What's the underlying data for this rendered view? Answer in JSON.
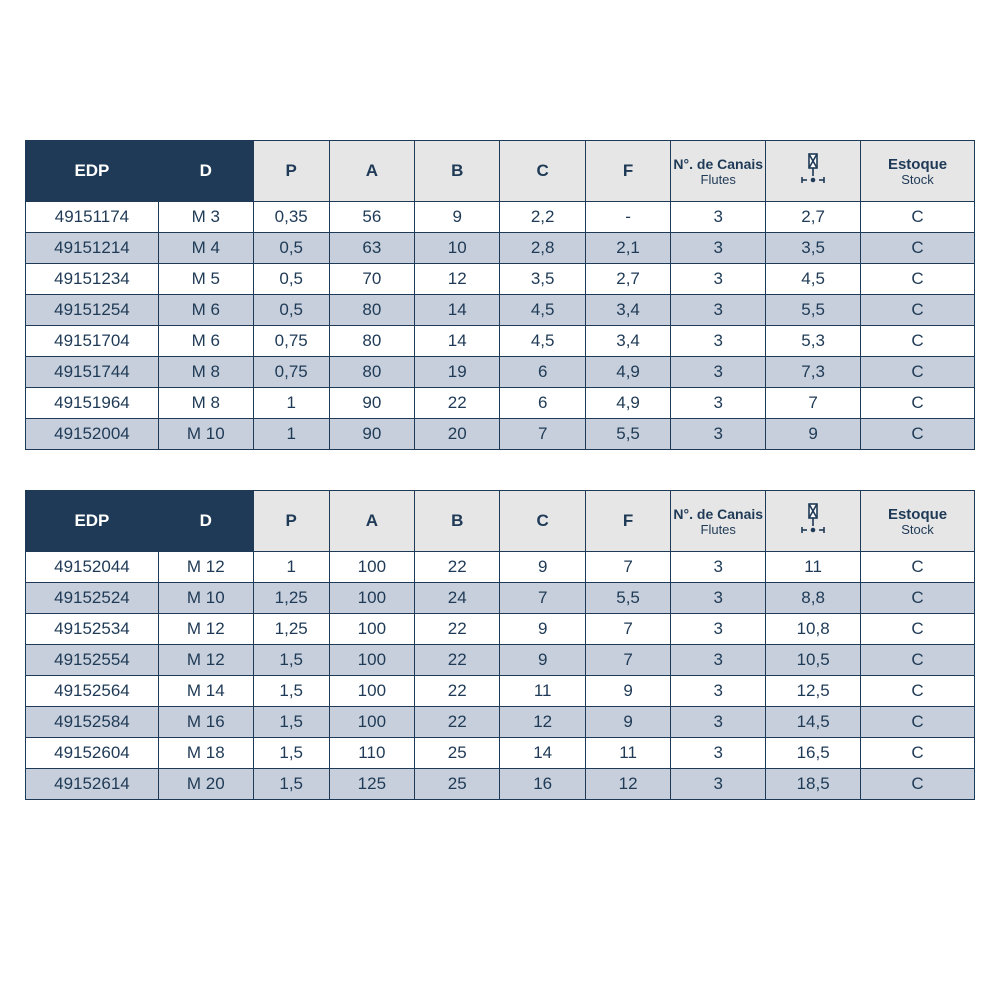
{
  "colors": {
    "header_dark_bg": "#1f3a56",
    "header_dark_fg": "#ffffff",
    "header_light_bg": "#e6e6e6",
    "row_alt_bg": "#c6cfdb",
    "row_plain_bg": "#ffffff",
    "border": "#1f3a56",
    "text": "#1f3a56"
  },
  "headers": {
    "edp": "EDP",
    "d": "D",
    "p": "P",
    "a": "A",
    "b": "B",
    "c": "C",
    "f": "F",
    "flutes_main": "N°. de Canais",
    "flutes_sub": "Flutes",
    "shank": "⌀",
    "stock_main": "Estoque",
    "stock_sub": "Stock"
  },
  "column_widths_pct": {
    "edp": 14,
    "d": 10,
    "p": 8,
    "a": 9,
    "b": 9,
    "c": 9,
    "f": 9,
    "flutes": 10,
    "shank": 10,
    "stock": 12
  },
  "tables": [
    {
      "rows": [
        [
          "49151174",
          "M 3",
          "0,35",
          "56",
          "9",
          "2,2",
          "-",
          "3",
          "2,7",
          "C"
        ],
        [
          "49151214",
          "M 4",
          "0,5",
          "63",
          "10",
          "2,8",
          "2,1",
          "3",
          "3,5",
          "C"
        ],
        [
          "49151234",
          "M 5",
          "0,5",
          "70",
          "12",
          "3,5",
          "2,7",
          "3",
          "4,5",
          "C"
        ],
        [
          "49151254",
          "M 6",
          "0,5",
          "80",
          "14",
          "4,5",
          "3,4",
          "3",
          "5,5",
          "C"
        ],
        [
          "49151704",
          "M 6",
          "0,75",
          "80",
          "14",
          "4,5",
          "3,4",
          "3",
          "5,3",
          "C"
        ],
        [
          "49151744",
          "M 8",
          "0,75",
          "80",
          "19",
          "6",
          "4,9",
          "3",
          "7,3",
          "C"
        ],
        [
          "49151964",
          "M 8",
          "1",
          "90",
          "22",
          "6",
          "4,9",
          "3",
          "7",
          "C"
        ],
        [
          "49152004",
          "M 10",
          "1",
          "90",
          "20",
          "7",
          "5,5",
          "3",
          "9",
          "C"
        ]
      ]
    },
    {
      "rows": [
        [
          "49152044",
          "M 12",
          "1",
          "100",
          "22",
          "9",
          "7",
          "3",
          "11",
          "C"
        ],
        [
          "49152524",
          "M 10",
          "1,25",
          "100",
          "24",
          "7",
          "5,5",
          "3",
          "8,8",
          "C"
        ],
        [
          "49152534",
          "M 12",
          "1,25",
          "100",
          "22",
          "9",
          "7",
          "3",
          "10,8",
          "C"
        ],
        [
          "49152554",
          "M 12",
          "1,5",
          "100",
          "22",
          "9",
          "7",
          "3",
          "10,5",
          "C"
        ],
        [
          "49152564",
          "M 14",
          "1,5",
          "100",
          "22",
          "11",
          "9",
          "3",
          "12,5",
          "C"
        ],
        [
          "49152584",
          "M 16",
          "1,5",
          "100",
          "22",
          "12",
          "9",
          "3",
          "14,5",
          "C"
        ],
        [
          "49152604",
          "M 18",
          "1,5",
          "110",
          "25",
          "14",
          "11",
          "3",
          "16,5",
          "C"
        ],
        [
          "49152614",
          "M 20",
          "1,5",
          "125",
          "25",
          "16",
          "12",
          "3",
          "18,5",
          "C"
        ]
      ]
    }
  ]
}
